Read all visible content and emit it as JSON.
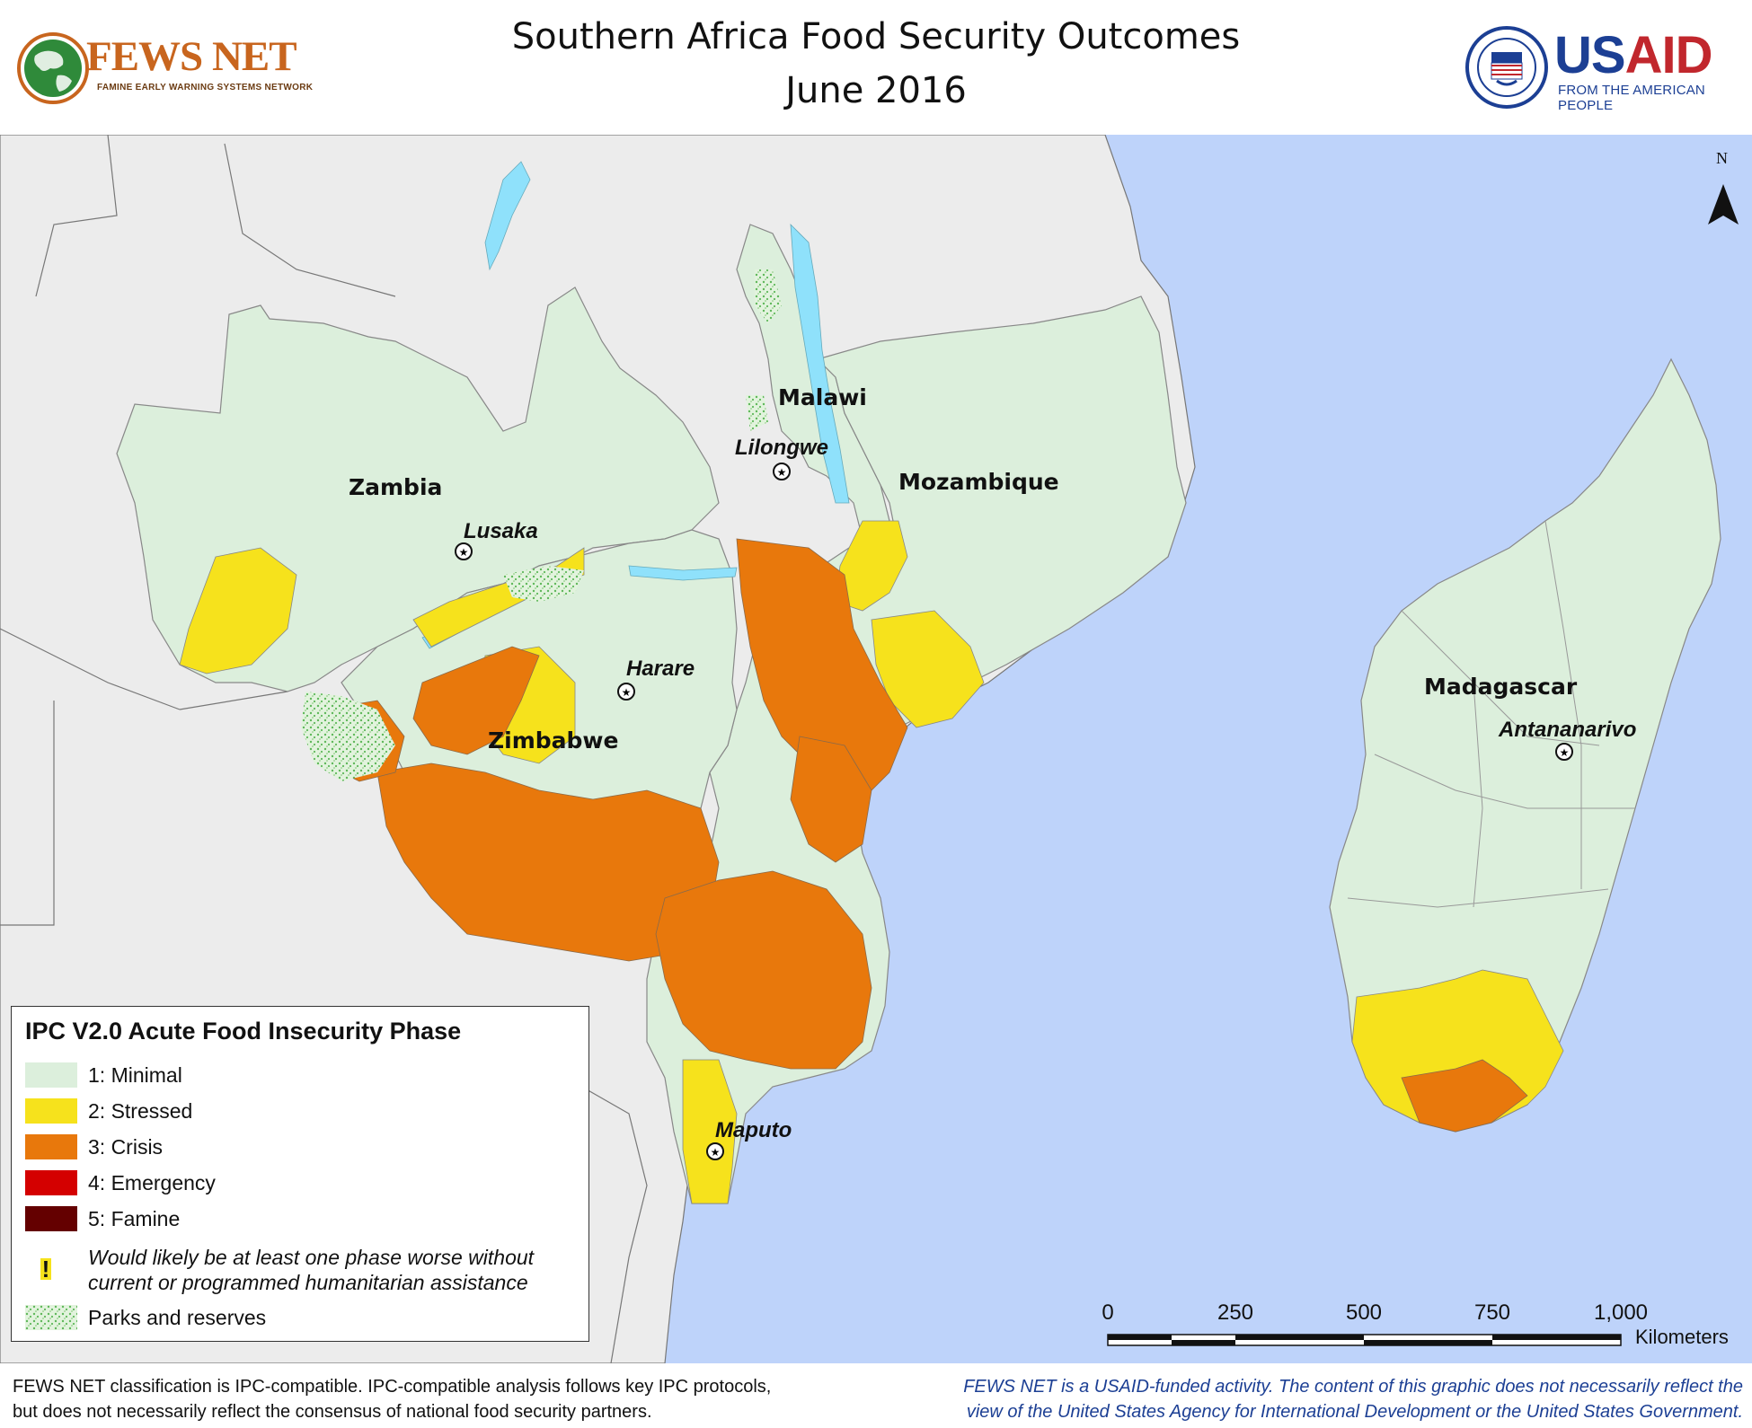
{
  "header": {
    "title_line1": "Southern Africa Food Security Outcomes",
    "title_line2": "June 2016",
    "fews_logo_name": "FEWS NET",
    "fews_logo_tagline": "FAMINE EARLY WARNING SYSTEMS NETWORK",
    "usaid_logo_us": "US",
    "usaid_logo_aid": "AID",
    "usaid_logo_tagline": "FROM THE AMERICAN PEOPLE"
  },
  "map": {
    "north_label": "N",
    "countries": [
      "Zambia",
      "Malawi",
      "Mozambique",
      "Zimbabwe",
      "Madagascar"
    ],
    "cities": [
      "Lusaka",
      "Lilongwe",
      "Harare",
      "Maputo",
      "Antananarivo"
    ],
    "colors": {
      "ocean": "#bed3fa",
      "outside_land": "#ececec",
      "lakes": "#8fe1fb",
      "minimal": "#dcefdc",
      "stressed": "#f6e21c",
      "crisis": "#e8780c",
      "emergency": "#d40000",
      "famine": "#640000",
      "parks": "#9fd88f"
    }
  },
  "legend": {
    "title": "IPC V2.0 Acute Food Insecurity Phase",
    "items": [
      {
        "label": "1: Minimal",
        "color": "#dcefdc"
      },
      {
        "label": "2: Stressed",
        "color": "#f6e21c"
      },
      {
        "label": "3: Crisis",
        "color": "#e8780c"
      },
      {
        "label": "4: Emergency",
        "color": "#d40000"
      },
      {
        "label": "5: Famine",
        "color": "#640000"
      }
    ],
    "assistance_symbol": "!",
    "assistance_note_line1": "Would likely be at least one phase worse without",
    "assistance_note_line2": "current or programmed humanitarian assistance",
    "parks_label": "Parks and reserves"
  },
  "scale_bar": {
    "ticks": [
      "0",
      "250",
      "500",
      "750",
      "1,000"
    ],
    "unit": "Kilometers"
  },
  "footer": {
    "left_line1": "FEWS NET classification is IPC-compatible. IPC-compatible analysis follows key IPC protocols,",
    "left_line2": "but does not necessarily reflect the consensus of national food security partners.",
    "right_line1": "FEWS NET is a USAID-funded activity. The content of this graphic does not necessarily reflect the",
    "right_line2": "view of the United States Agency for International Development or the United States Government."
  }
}
